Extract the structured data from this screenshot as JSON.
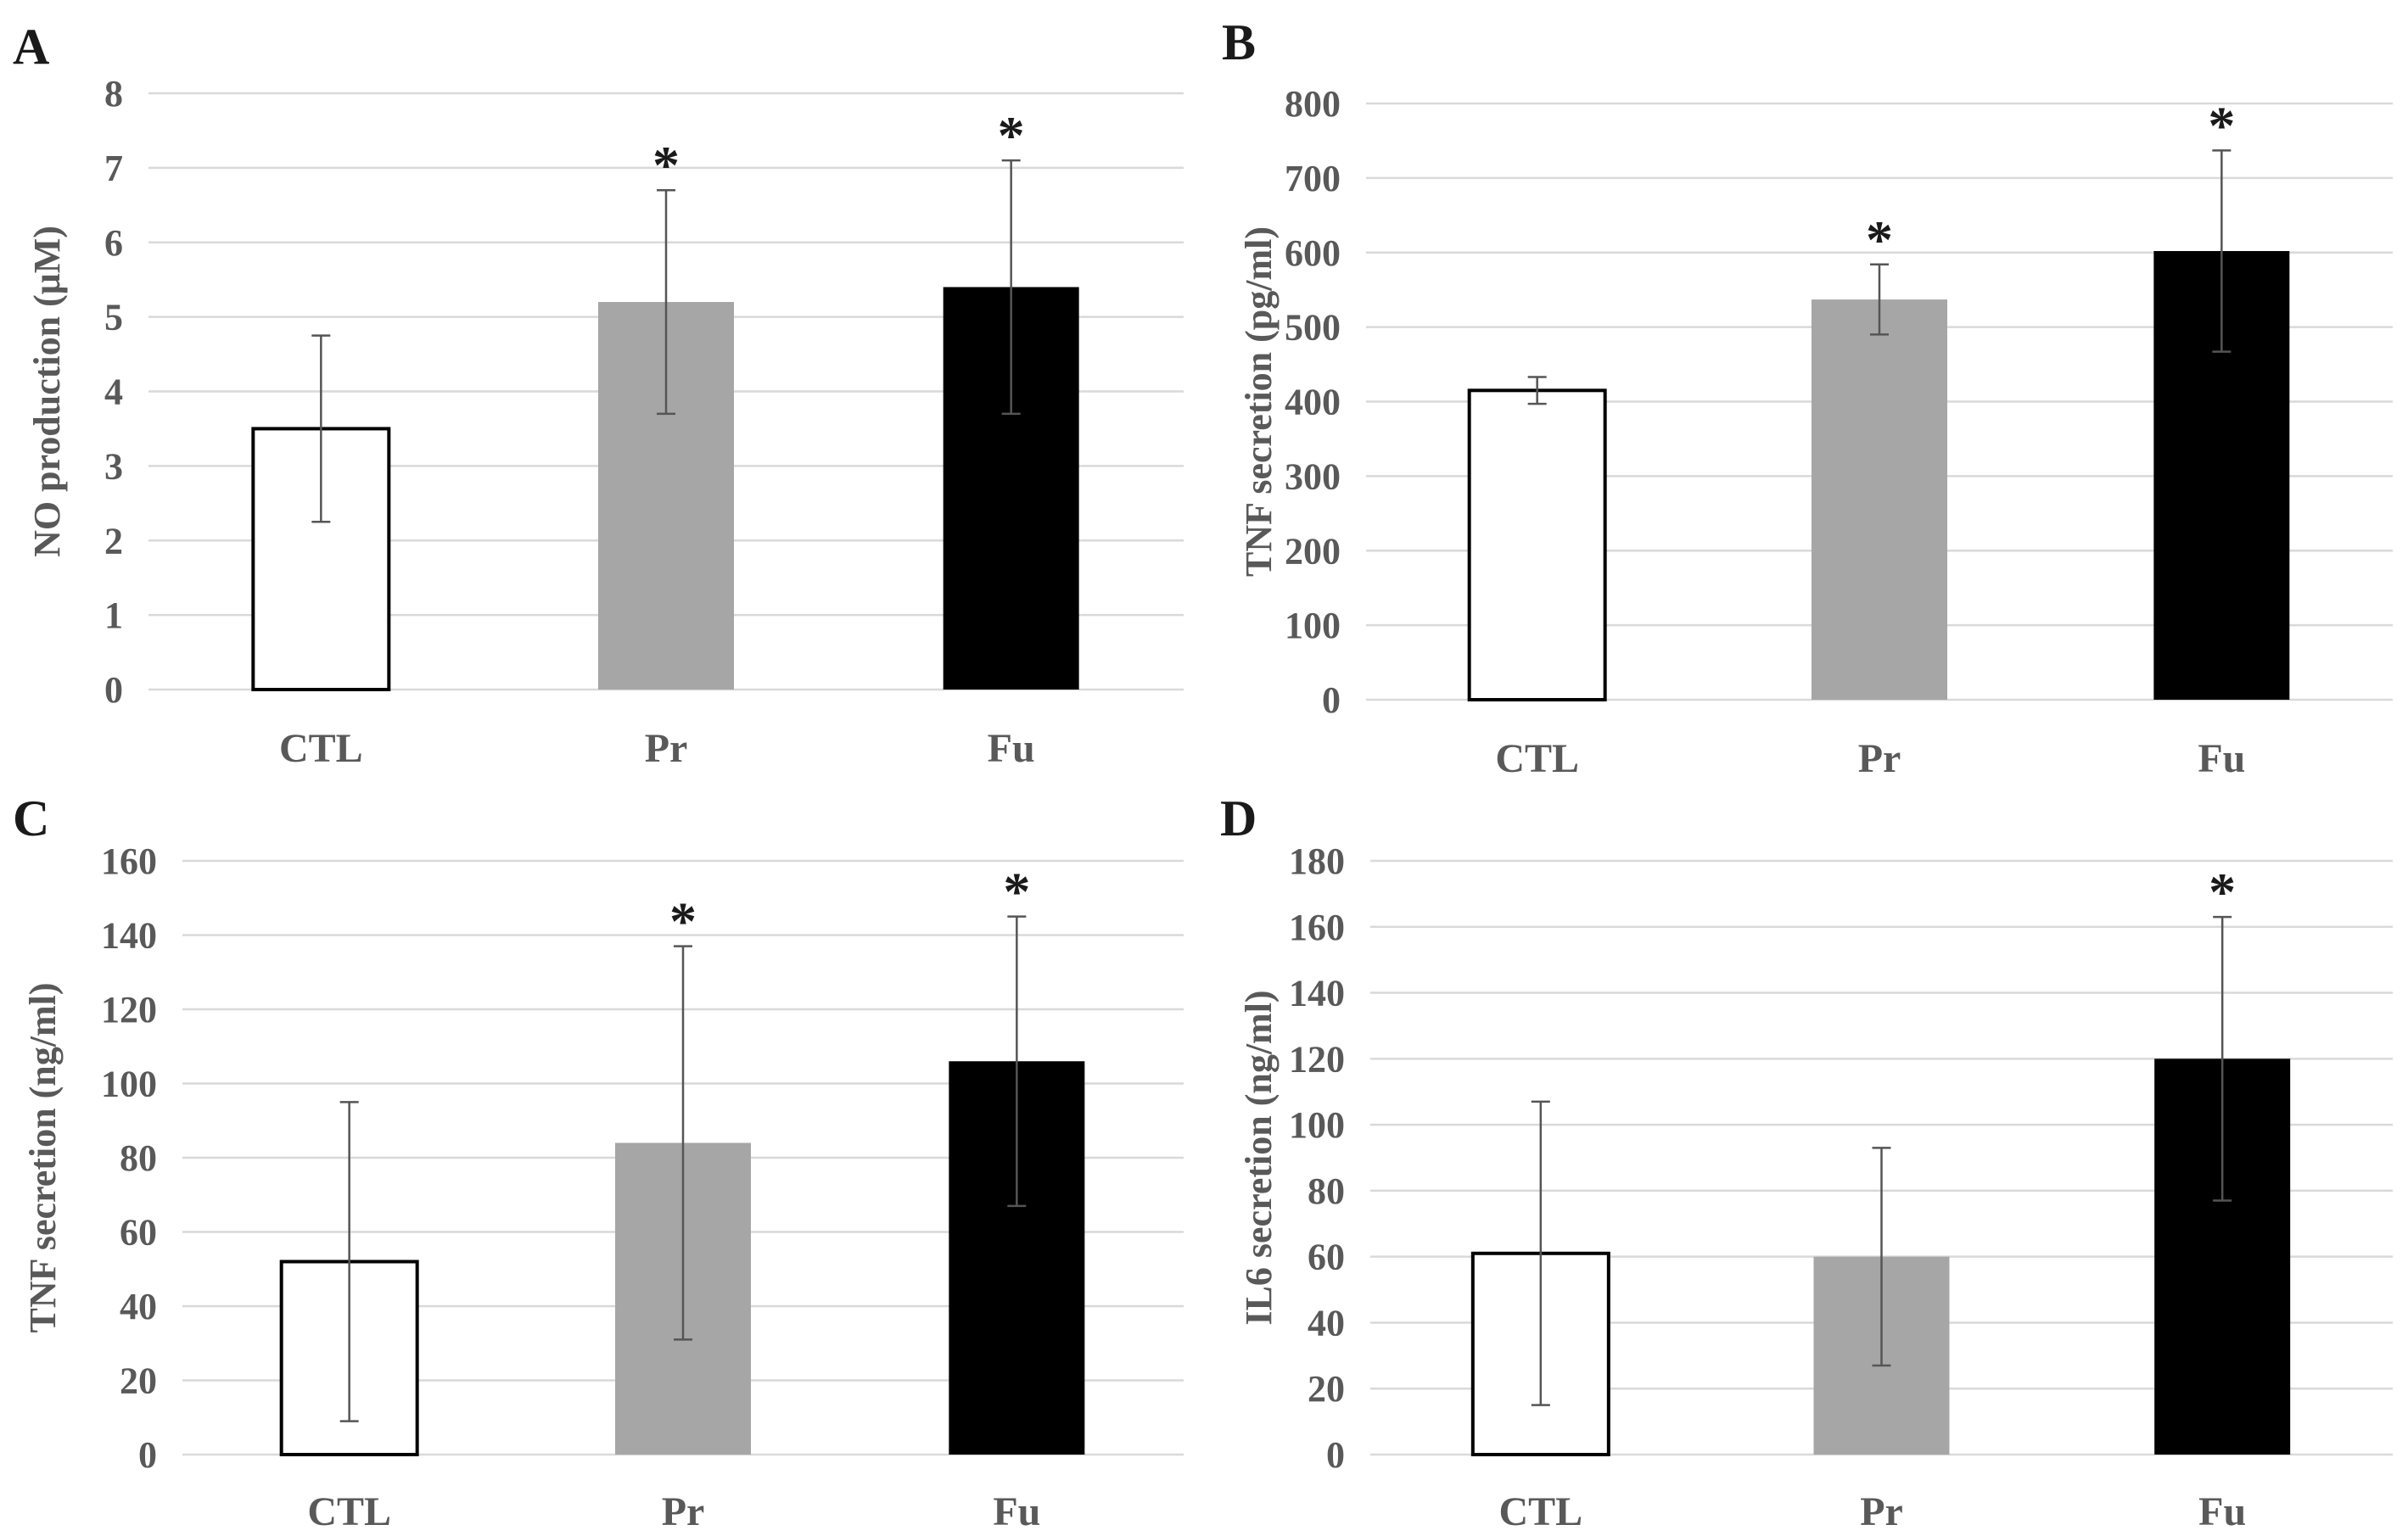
{
  "chart_data": [
    {
      "type": "bar",
      "panel": "A",
      "categories": [
        "CTL",
        "Pr",
        "Fu"
      ],
      "values": [
        3.5,
        5.2,
        5.4
      ],
      "errors": [
        1.25,
        1.5,
        1.7
      ],
      "significant": [
        "",
        "*",
        "*"
      ],
      "colors": [
        "#ffffff",
        "#a6a6a6",
        "#000000"
      ],
      "ylabel": "NO production (μM)",
      "ylim": [
        0,
        8
      ],
      "yticks": [
        "0",
        "1",
        "2",
        "3",
        "4",
        "5",
        "6",
        "7",
        "8"
      ],
      "grid": true
    },
    {
      "type": "bar",
      "panel": "B",
      "categories": [
        "CTL",
        "Pr",
        "Fu"
      ],
      "values": [
        415,
        537,
        602
      ],
      "errors": [
        18,
        47,
        135
      ],
      "significant": [
        "",
        "*",
        "*"
      ],
      "colors": [
        "#ffffff",
        "#a6a6a6",
        "#000000"
      ],
      "ylabel": "TNF secretion (pg/ml)",
      "ylim": [
        0,
        800
      ],
      "yticks": [
        "0",
        "100",
        "200",
        "300",
        "400",
        "500",
        "600",
        "700",
        "800"
      ],
      "grid": true
    },
    {
      "type": "bar",
      "panel": "C",
      "categories": [
        "CTL",
        "Pr",
        "Fu"
      ],
      "values": [
        52,
        84,
        106
      ],
      "errors": [
        43,
        53,
        39
      ],
      "significant": [
        "",
        "*",
        "*"
      ],
      "colors": [
        "#ffffff",
        "#a6a6a6",
        "#000000"
      ],
      "ylabel": "TNF secretion (ng/ml)",
      "ylim": [
        0,
        160
      ],
      "yticks": [
        "0",
        "20",
        "40",
        "60",
        "80",
        "100",
        "120",
        "140",
        "160"
      ],
      "grid": true
    },
    {
      "type": "bar",
      "panel": "D",
      "categories": [
        "CTL",
        "Pr",
        "Fu"
      ],
      "values": [
        61,
        60,
        120
      ],
      "errors": [
        46,
        33,
        43
      ],
      "significant": [
        "",
        "",
        "*"
      ],
      "colors": [
        "#ffffff",
        "#a6a6a6",
        "#000000"
      ],
      "ylabel": "IL6 secretion (ng/ml)",
      "ylim": [
        0,
        180
      ],
      "yticks": [
        "0",
        "20",
        "40",
        "60",
        "80",
        "100",
        "120",
        "140",
        "160",
        "180"
      ],
      "grid": true
    }
  ]
}
